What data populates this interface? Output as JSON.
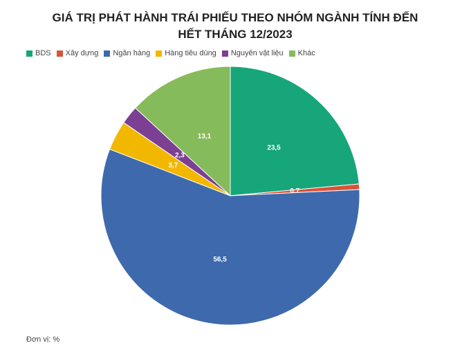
{
  "chart_data": {
    "type": "pie",
    "title": "GIÁ TRỊ PHÁT HÀNH TRÁI PHIẾU THEO NHÓM NGÀNH TÍNH ĐẾN HẾT THÁNG 12/2023",
    "categories": [
      "BDS",
      "Xây dựng",
      "Ngân hàng",
      "Hàng tiêu dùng",
      "Nguyên vật liệu",
      "Khác"
    ],
    "values": [
      23.5,
      0.7,
      56.5,
      3.7,
      2.3,
      13.1
    ],
    "value_labels": [
      "23,5",
      "0,7",
      "56,5",
      "3,7",
      "2,3",
      "13,1"
    ],
    "colors": [
      "#17a57a",
      "#d9533b",
      "#3e6aad",
      "#f2b800",
      "#7b3f93",
      "#86bb5b"
    ],
    "note": "Đơn vị: %"
  }
}
